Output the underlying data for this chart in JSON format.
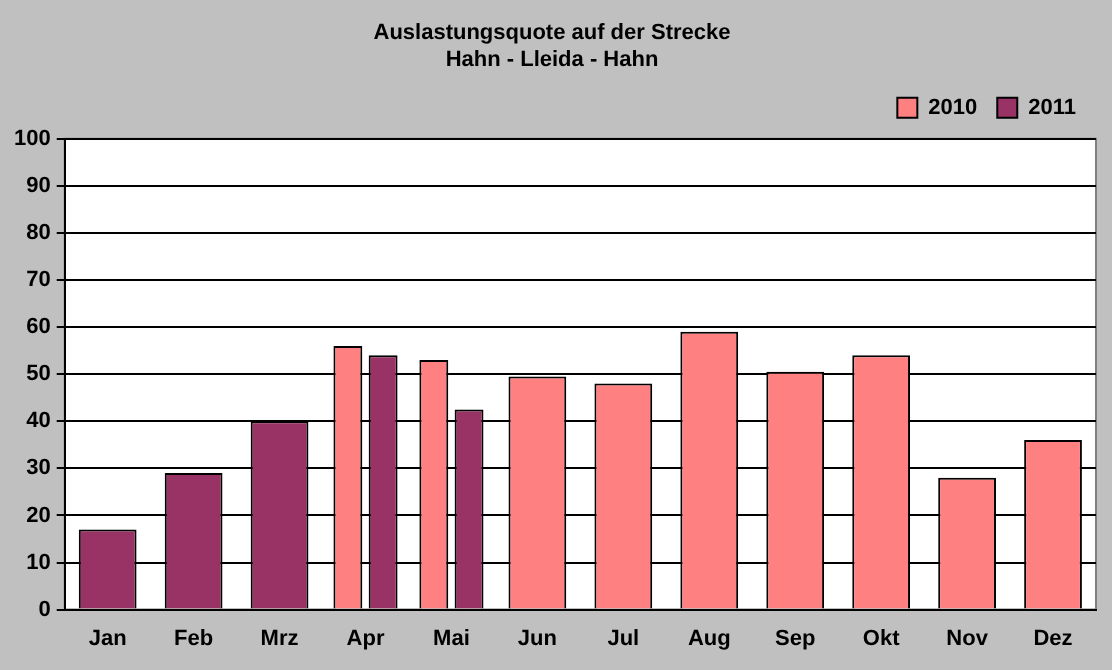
{
  "chart_data": {
    "type": "bar",
    "title": "Auslastungsquote auf der Strecke\nHahn - Lleida - Hahn",
    "categories": [
      "Jan",
      "Feb",
      "Mrz",
      "Apr",
      "Mai",
      "Jun",
      "Jul",
      "Aug",
      "Sep",
      "Okt",
      "Nov",
      "Dez"
    ],
    "series": [
      {
        "name": "2010",
        "color": "#ff8080",
        "values": [
          null,
          null,
          null,
          56,
          53,
          49.5,
          48,
          59,
          50.5,
          54,
          28,
          36
        ]
      },
      {
        "name": "2011",
        "color": "#993366",
        "values": [
          17,
          29,
          40,
          54,
          42.5,
          null,
          null,
          null,
          null,
          null,
          null,
          null
        ]
      }
    ],
    "ylim": [
      0,
      100
    ],
    "yticks": [
      0,
      10,
      20,
      30,
      40,
      50,
      60,
      70,
      80,
      90,
      100
    ],
    "grid": "y",
    "legend": "top right"
  }
}
